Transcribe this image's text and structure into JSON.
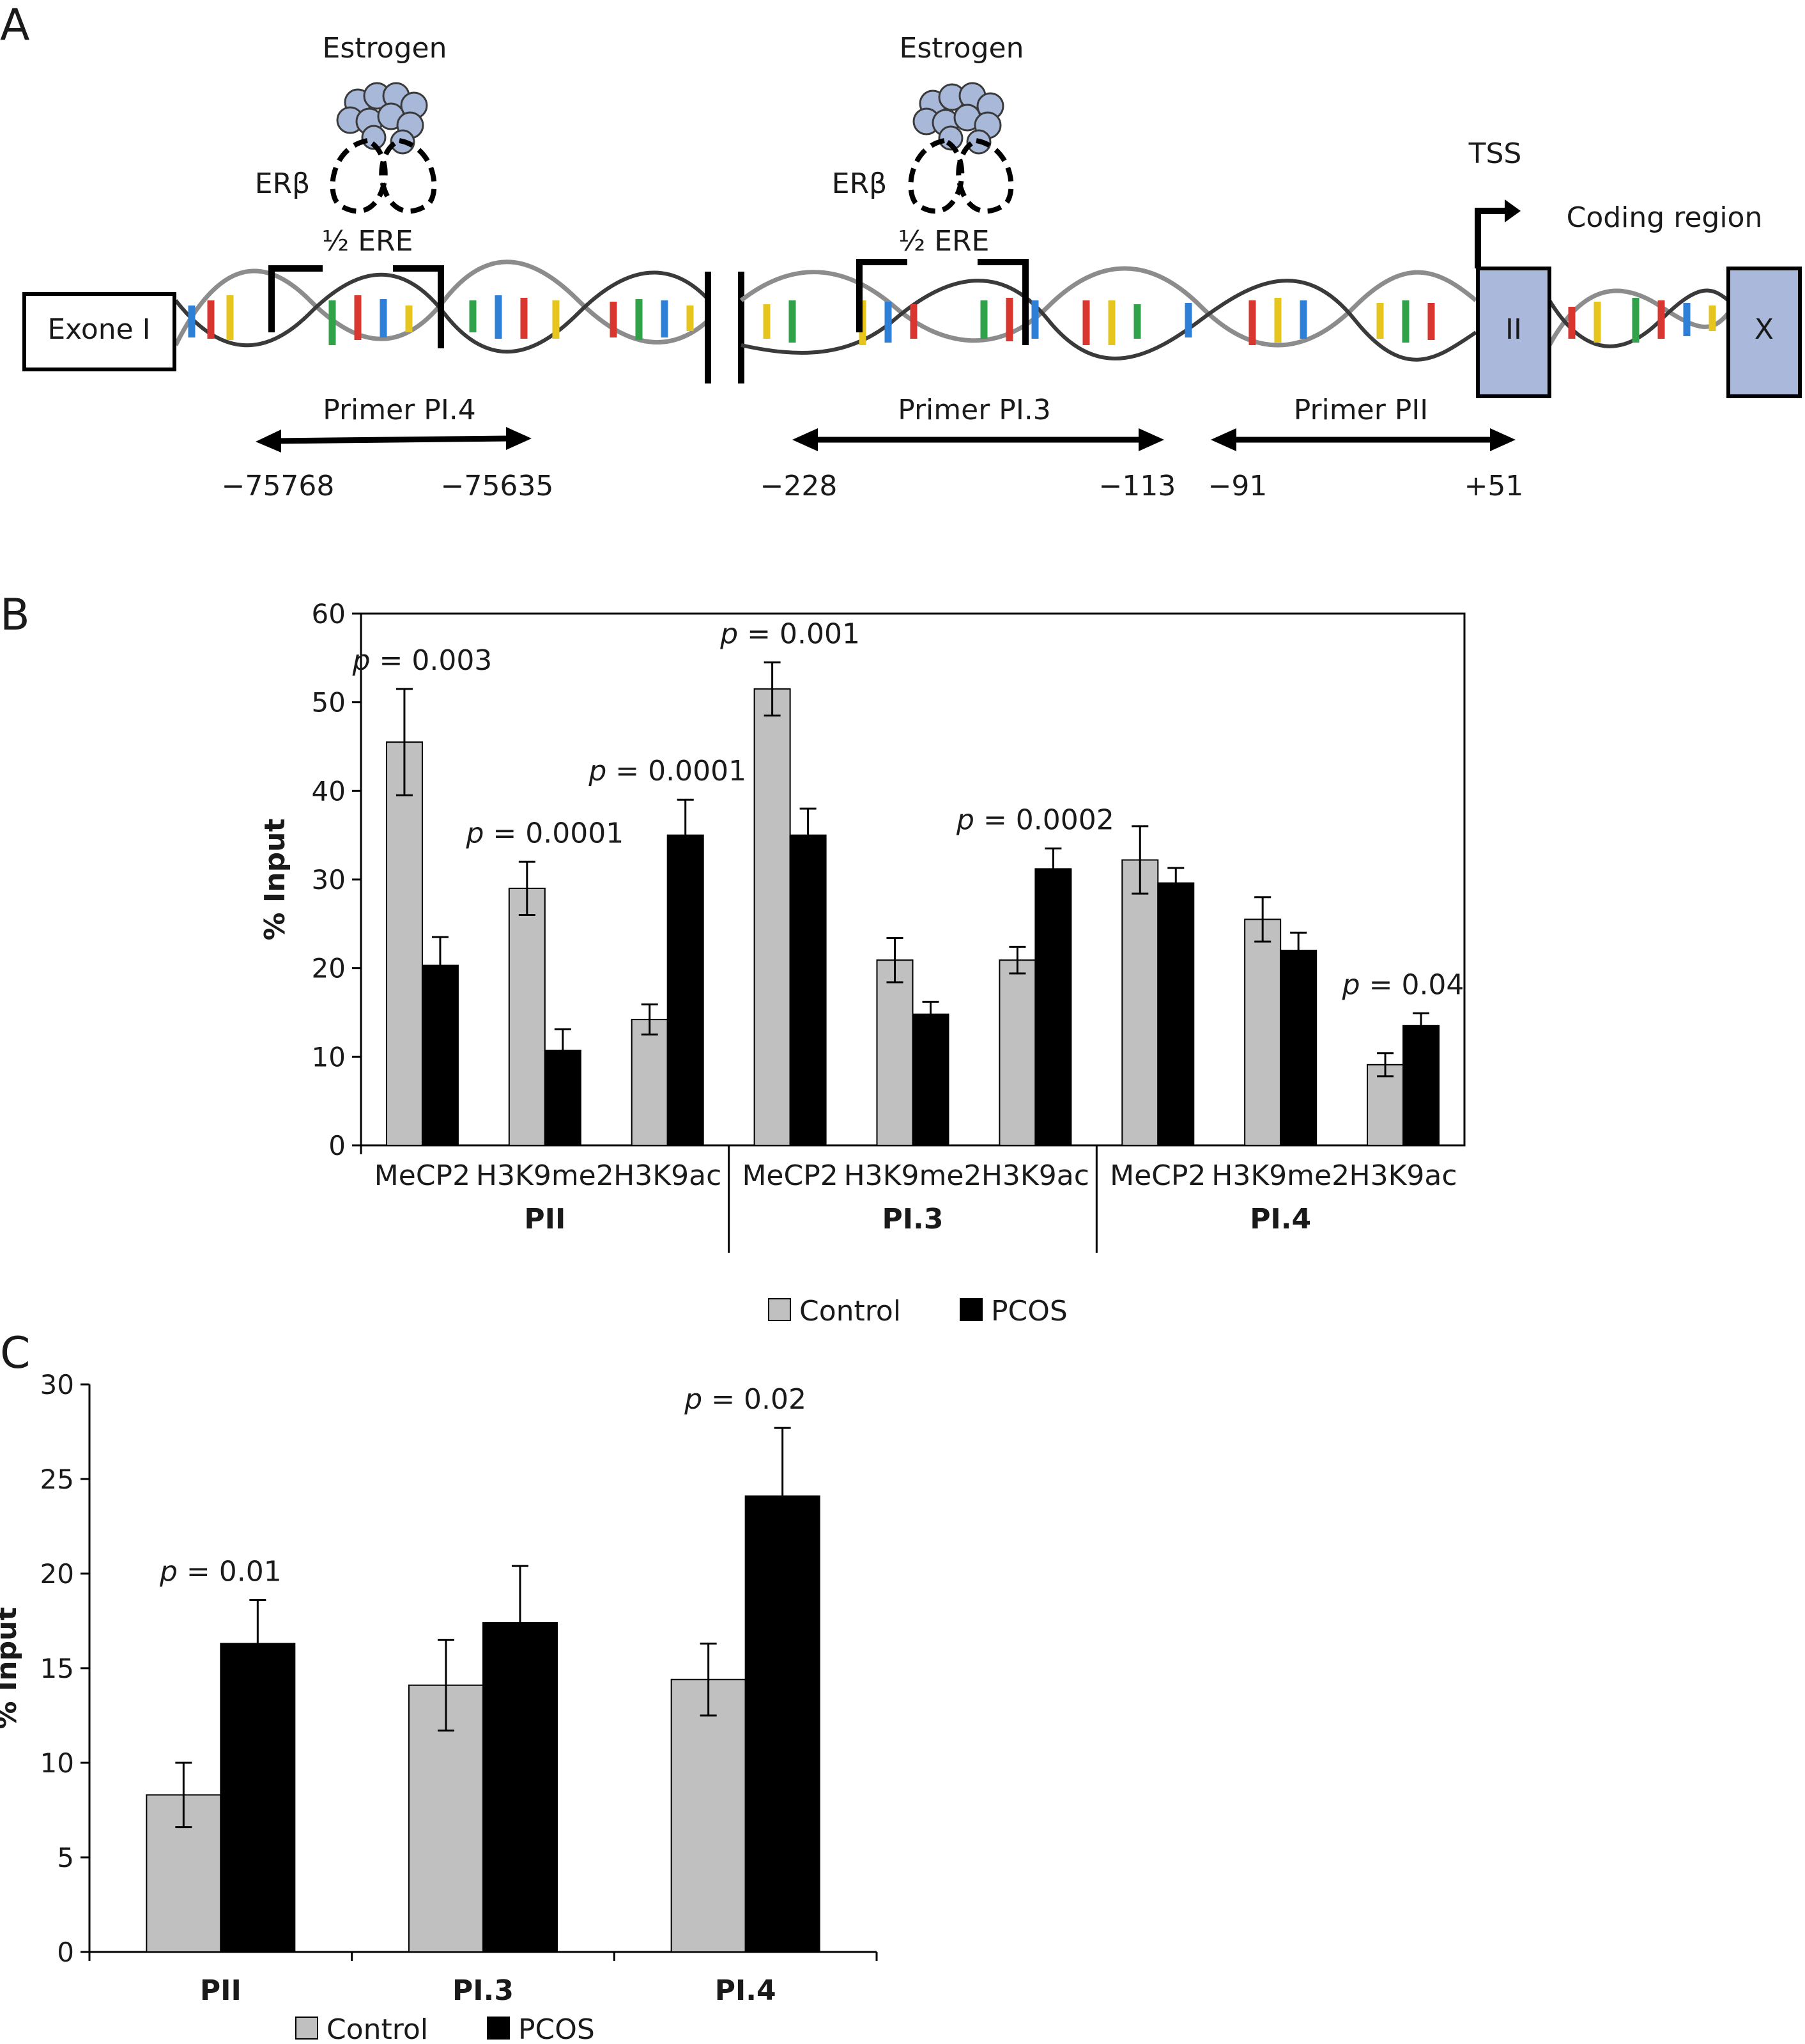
{
  "panel_a": {
    "letter": "A",
    "estrogen_label": "Estrogen",
    "erb_label": "ERβ",
    "half_ere_label": "½ ERE",
    "exon1_label": "Exone I",
    "exon2_label": "II",
    "exonx_label": "X",
    "tss_label": "TSS",
    "coding_label": "Coding region",
    "primer_pi4": {
      "label": "Primer PI.4",
      "start": "−75768",
      "end": "−75635"
    },
    "primer_pi3": {
      "label": "Primer PI.3",
      "start": "−228",
      "end": "−113"
    },
    "primer_pii": {
      "label": "Primer PII",
      "start": "−91",
      "end": "+51"
    },
    "colors": {
      "exon_fill": "#aab8dc",
      "molecule_fill": "#a8b8d8",
      "strand": "#8c8c8c"
    }
  },
  "panel_b": {
    "letter": "B"
  },
  "panel_c": {
    "letter": "C"
  },
  "chart_data": [
    {
      "panel": "B",
      "type": "bar",
      "ylabel": "% Input",
      "ylim": [
        0,
        60
      ],
      "yticks": [
        0,
        10,
        20,
        30,
        40,
        50,
        60
      ],
      "groups": [
        "PII",
        "PI.3",
        "PI.4"
      ],
      "categories": [
        "MeCP2",
        "H3K9me2",
        "H3K9ac",
        "MeCP2",
        "H3K9me2",
        "H3K9ac",
        "MeCP2",
        "H3K9me2",
        "H3K9ac"
      ],
      "series": [
        {
          "name": "Control",
          "color": "#c0c0c0",
          "values": [
            45.5,
            29.0,
            14.2,
            51.5,
            20.9,
            20.9,
            32.2,
            25.5,
            9.1
          ],
          "errors": [
            6.0,
            3.0,
            1.7,
            3.0,
            2.5,
            1.5,
            3.8,
            2.5,
            1.3
          ]
        },
        {
          "name": "PCOS",
          "color": "#000000",
          "values": [
            20.3,
            10.7,
            35.0,
            35.0,
            14.8,
            31.2,
            29.6,
            22.0,
            13.5
          ],
          "errors": [
            3.2,
            2.4,
            4.0,
            3.0,
            1.4,
            2.3,
            1.7,
            2.0,
            1.4
          ]
        }
      ],
      "annotations": [
        {
          "category_index": 0,
          "p": "0.003"
        },
        {
          "category_index": 1,
          "p": "0.0001"
        },
        {
          "category_index": 2,
          "p": "0.0001"
        },
        {
          "category_index": 3,
          "p": "0.001"
        },
        {
          "category_index": 5,
          "p": "0.0002"
        },
        {
          "category_index": 8,
          "p": "0.04"
        }
      ],
      "legend": [
        "Control",
        "PCOS"
      ],
      "legend_position": "bottom"
    },
    {
      "panel": "C",
      "type": "bar",
      "ylabel": "% Input",
      "ylim": [
        0,
        30
      ],
      "yticks": [
        0,
        5,
        10,
        15,
        20,
        25,
        30
      ],
      "categories": [
        "PII",
        "PI.3",
        "PI.4"
      ],
      "series": [
        {
          "name": "Control",
          "color": "#c0c0c0",
          "values": [
            8.3,
            14.1,
            14.4
          ],
          "errors": [
            1.7,
            2.4,
            1.9
          ]
        },
        {
          "name": "PCOS",
          "color": "#000000",
          "values": [
            16.3,
            17.4,
            24.1
          ],
          "errors": [
            2.3,
            3.0,
            3.6
          ]
        }
      ],
      "annotations": [
        {
          "category_index": 0,
          "p": "0.01"
        },
        {
          "category_index": 2,
          "p": "0.02"
        }
      ],
      "legend": [
        "Control",
        "PCOS"
      ],
      "legend_position": "bottom"
    }
  ]
}
